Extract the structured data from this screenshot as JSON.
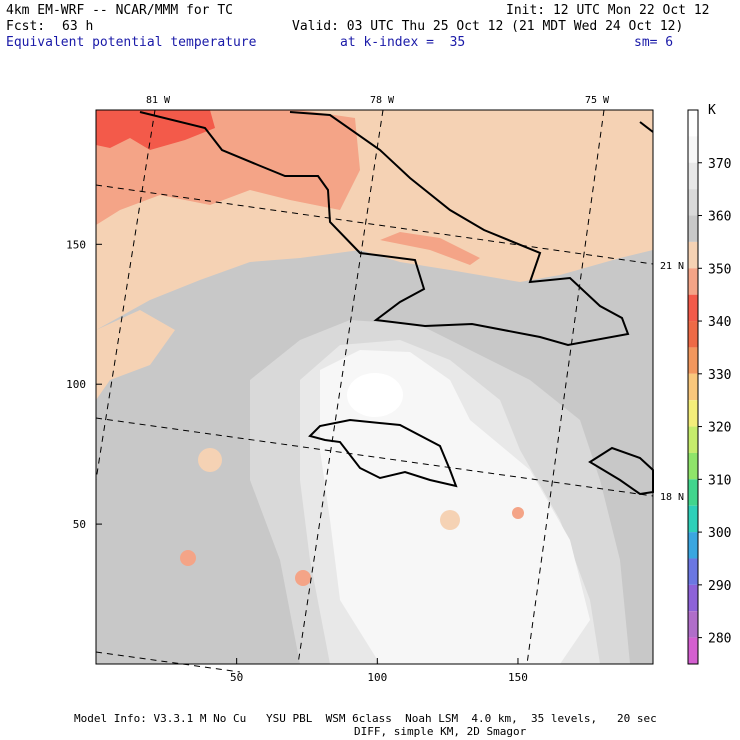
{
  "header": {
    "model": "4km EM-WRF -- NCAR/MMM for TC",
    "init": "Init: 12 UTC Mon 22 Oct 12",
    "fcst_label": "Fcst:",
    "fcst_value": "63 h",
    "valid": "Valid: 03 UTC Thu 25 Oct 12 (21 MDT Wed 24 Oct 12)",
    "field": "Equivalent potential temperature",
    "level": "at k-index =  35",
    "smoothing": "sm= 6"
  },
  "footer": {
    "line1": "Model Info: V3.3.1 M No Cu   YSU PBL  WSM 6class  Noah LSM  4.0 km,  35 levels,   20 sec",
    "line2": "DIFF, simple KM, 2D Smagor"
  },
  "chart_data": {
    "type": "heatmap",
    "title": "Equivalent potential temperature",
    "xlim": [
      0,
      198
    ],
    "ylim": [
      0,
      198
    ],
    "x_ticks": [
      50,
      100,
      150
    ],
    "y_ticks": [
      50,
      100,
      150
    ],
    "lon_labels": [
      "81 W",
      "78 W",
      "75 W"
    ],
    "lat_labels": [
      "21 N",
      "18 N"
    ],
    "colorbar": {
      "unit": "K",
      "labels": [
        370,
        360,
        350,
        340,
        330,
        320,
        310,
        300,
        290,
        280
      ],
      "bins": [
        {
          "lo": 375,
          "hi": 380,
          "color": "#ffffff"
        },
        {
          "lo": 370,
          "hi": 375,
          "color": "#f7f7f7"
        },
        {
          "lo": 365,
          "hi": 370,
          "color": "#e8e8e8"
        },
        {
          "lo": 360,
          "hi": 365,
          "color": "#d9d9d9"
        },
        {
          "lo": 355,
          "hi": 360,
          "color": "#c8c8c8"
        },
        {
          "lo": 350,
          "hi": 355,
          "color": "#f5d2b4"
        },
        {
          "lo": 345,
          "hi": 350,
          "color": "#f4a487"
        },
        {
          "lo": 340,
          "hi": 345,
          "color": "#f35a4a"
        },
        {
          "lo": 335,
          "hi": 340,
          "color": "#ee6a46"
        },
        {
          "lo": 330,
          "hi": 335,
          "color": "#f2975e"
        },
        {
          "lo": 325,
          "hi": 330,
          "color": "#f9c77c"
        },
        {
          "lo": 320,
          "hi": 325,
          "color": "#f4ee7a"
        },
        {
          "lo": 315,
          "hi": 320,
          "color": "#c6ec6c"
        },
        {
          "lo": 310,
          "hi": 315,
          "color": "#8fe46a"
        },
        {
          "lo": 305,
          "hi": 310,
          "color": "#41d58d"
        },
        {
          "lo": 300,
          "hi": 305,
          "color": "#2ecfb9"
        },
        {
          "lo": 295,
          "hi": 300,
          "color": "#3aa6e0"
        },
        {
          "lo": 290,
          "hi": 295,
          "color": "#6b77e2"
        },
        {
          "lo": 285,
          "hi": 290,
          "color": "#8d62d8"
        },
        {
          "lo": 280,
          "hi": 285,
          "color": "#b06ec9"
        },
        {
          "lo": 275,
          "hi": 280,
          "color": "#d45fd0"
        }
      ]
    },
    "field_summary": [
      {
        "region": "north-west corner",
        "value_K": 342
      },
      {
        "region": "northern band",
        "value_K": 350
      },
      {
        "region": "central and southern domain",
        "value_K": 358
      },
      {
        "region": "center core (near x=100, y=100)",
        "value_K": 378
      },
      {
        "region": "south-central plume",
        "value_K": 370
      }
    ]
  }
}
